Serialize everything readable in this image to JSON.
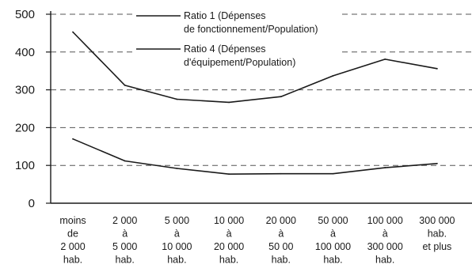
{
  "chart_data": {
    "type": "line",
    "title": "",
    "xlabel": "",
    "ylabel": "",
    "ylim": [
      0,
      500
    ],
    "yticks": [
      0,
      100,
      200,
      300,
      400,
      500
    ],
    "grid": true,
    "legend_position": "top",
    "categories": [
      [
        "moins",
        "de",
        "2 000",
        "hab."
      ],
      [
        "2 000",
        "à",
        "5 000",
        "hab."
      ],
      [
        "5 000",
        "à",
        "10 000",
        "hab."
      ],
      [
        "10 000",
        "à",
        "20 000",
        "hab."
      ],
      [
        "20 000",
        "à",
        "50 00",
        "hab."
      ],
      [
        "50 000",
        "à",
        "100 000",
        "hab."
      ],
      [
        "100 000",
        "à",
        "300 000",
        "hab."
      ],
      [
        "300 000",
        "hab.",
        "et plus"
      ]
    ],
    "series": [
      {
        "name": [
          "Ratio 1 (Dépenses",
          "de fonctionnement/Population)"
        ],
        "values": [
          453,
          312,
          275,
          267,
          282,
          337,
          381,
          356
        ]
      },
      {
        "name": [
          "Ratio 4  (Dépenses",
          "d'équipement/Population)"
        ],
        "values": [
          170,
          112,
          92,
          77,
          78,
          78,
          94,
          105
        ]
      }
    ],
    "colors": {
      "line": "#1a1a1a",
      "grid": "#555555",
      "axis": "#1a1a1a"
    }
  }
}
